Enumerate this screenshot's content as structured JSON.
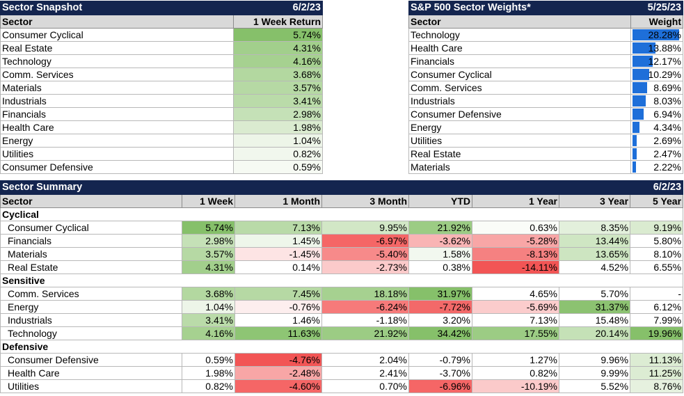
{
  "snapshot": {
    "title": "Sector Snapshot",
    "date": "6/2/23",
    "col_sector": "Sector",
    "col_return": "1 Week Return",
    "rows": [
      {
        "sector": "Consumer Cyclical",
        "ret": "5.74%",
        "color": "#86c06a"
      },
      {
        "sector": "Real Estate",
        "ret": "4.31%",
        "color": "#a2cf8c"
      },
      {
        "sector": "Technology",
        "ret": "4.16%",
        "color": "#a6d190"
      },
      {
        "sector": "Comm. Services",
        "ret": "3.68%",
        "color": "#b3d8a0"
      },
      {
        "sector": "Materials",
        "ret": "3.57%",
        "color": "#b6d9a4"
      },
      {
        "sector": "Industrials",
        "ret": "3.41%",
        "color": "#badba9"
      },
      {
        "sector": "Financials",
        "ret": "2.98%",
        "color": "#c5e1b7"
      },
      {
        "sector": "Health Care",
        "ret": "1.98%",
        "color": "#daebd0"
      },
      {
        "sector": "Energy",
        "ret": "1.04%",
        "color": "#edf5e8"
      },
      {
        "sector": "Utilities",
        "ret": "0.82%",
        "color": "#f1f7ed"
      },
      {
        "sector": "Consumer Defensive",
        "ret": "0.59%",
        "color": "#f6faf3"
      }
    ]
  },
  "weights": {
    "title": "S&P 500 Sector Weights*",
    "date": "5/25/23",
    "col_sector": "Sector",
    "col_weight": "Weight",
    "bar_color": "#1e6fd9",
    "rows": [
      {
        "sector": "Technology",
        "weight": "28.28%",
        "value": 28.28
      },
      {
        "sector": "Health Care",
        "weight": "13.88%",
        "value": 13.88
      },
      {
        "sector": "Financials",
        "weight": "12.17%",
        "value": 12.17
      },
      {
        "sector": "Consumer Cyclical",
        "weight": "10.29%",
        "value": 10.29
      },
      {
        "sector": "Comm. Services",
        "weight": "8.69%",
        "value": 8.69
      },
      {
        "sector": "Industrials",
        "weight": "8.03%",
        "value": 8.03
      },
      {
        "sector": "Consumer Defensive",
        "weight": "6.94%",
        "value": 6.94
      },
      {
        "sector": "Energy",
        "weight": "4.34%",
        "value": 4.34
      },
      {
        "sector": "Utilities",
        "weight": "2.69%",
        "value": 2.69
      },
      {
        "sector": "Real Estate",
        "weight": "2.47%",
        "value": 2.47
      },
      {
        "sector": "Materials",
        "weight": "2.22%",
        "value": 2.22
      }
    ]
  },
  "summary": {
    "title": "Sector Summary",
    "date": "6/2/23",
    "columns": [
      "Sector",
      "1 Week",
      "1 Month",
      "3 Month",
      "YTD",
      "1 Year",
      "3 Year",
      "5 Year"
    ],
    "groups": [
      {
        "name": "Cyclical",
        "rows": [
          {
            "sector": "Consumer Cyclical",
            "values": [
              "5.74%",
              "7.13%",
              "9.95%",
              "21.92%",
              "0.63%",
              "8.35%",
              "9.19%"
            ],
            "colors": [
              "#86c06a",
              "#b9daa8",
              "#d2e7c6",
              "#9ccc84",
              "#fafcf8",
              "#e3f0dc",
              "#daebd0"
            ]
          },
          {
            "sector": "Financials",
            "values": [
              "2.98%",
              "1.45%",
              "-6.97%",
              "-3.62%",
              "-5.28%",
              "13.44%",
              "5.80%"
            ],
            "colors": [
              "#c5e1b7",
              "#eef6ea",
              "#f56666",
              "#f9b4b4",
              "#f8a6a6",
              "#cfe6c3",
              "#ffffff"
            ]
          },
          {
            "sector": "Materials",
            "values": [
              "3.57%",
              "-1.45%",
              "-5.40%",
              "1.58%",
              "-8.13%",
              "13.65%",
              "8.10%"
            ],
            "colors": [
              "#b6d9a4",
              "#fde4e4",
              "#f78a8a",
              "#f2f8ef",
              "#f58181",
              "#cde5c1",
              "#ffffff"
            ]
          },
          {
            "sector": "Real Estate",
            "values": [
              "4.31%",
              "0.14%",
              "-2.73%",
              "0.38%",
              "-14.11%",
              "4.52%",
              "6.55%"
            ],
            "colors": [
              "#a2cf8c",
              "#ffffff",
              "#fbcaca",
              "#ffffff",
              "#f25555",
              "#ffffff",
              "#ffffff"
            ]
          }
        ]
      },
      {
        "name": "Sensitive",
        "rows": [
          {
            "sector": "Comm. Services",
            "values": [
              "3.68%",
              "7.45%",
              "18.18%",
              "31.97%",
              "4.65%",
              "5.70%",
              "-"
            ],
            "colors": [
              "#b3d8a0",
              "#b6d9a4",
              "#a6d190",
              "#86c06a",
              "#ffffff",
              "#ffffff",
              "#ffffff"
            ]
          },
          {
            "sector": "Energy",
            "values": [
              "1.04%",
              "-0.76%",
              "-6.24%",
              "-7.72%",
              "-5.69%",
              "31.37%",
              "6.12%"
            ],
            "colors": [
              "#edf5e8",
              "#fdeeee",
              "#f67a7a",
              "#f36969",
              "#fbcccc",
              "#8cc271",
              "#ffffff"
            ]
          },
          {
            "sector": "Industrials",
            "values": [
              "3.41%",
              "1.46%",
              "-1.18%",
              "3.20%",
              "7.13%",
              "15.48%",
              "7.99%"
            ],
            "colors": [
              "#badba9",
              "#ffffff",
              "#ffffff",
              "#ffffff",
              "#ffffff",
              "#ffffff",
              "#ffffff"
            ]
          },
          {
            "sector": "Technology",
            "values": [
              "4.16%",
              "11.63%",
              "21.92%",
              "34.42%",
              "17.55%",
              "20.14%",
              "19.96%"
            ],
            "colors": [
              "#a6d190",
              "#8ec574",
              "#9ccc84",
              "#86c06a",
              "#9ccc84",
              "#c5e1b7",
              "#86c06a"
            ]
          }
        ]
      },
      {
        "name": "Defensive",
        "rows": [
          {
            "sector": "Consumer Defensive",
            "values": [
              "0.59%",
              "-4.76%",
              "2.04%",
              "-0.79%",
              "1.27%",
              "9.96%",
              "11.13%"
            ],
            "colors": [
              "#ffffff",
              "#f25555",
              "#ffffff",
              "#ffffff",
              "#ffffff",
              "#ffffff",
              "#dcecd3"
            ]
          },
          {
            "sector": "Health Care",
            "values": [
              "1.98%",
              "-2.48%",
              "2.41%",
              "-3.70%",
              "0.82%",
              "9.99%",
              "11.25%"
            ],
            "colors": [
              "#ffffff",
              "#f8a6a6",
              "#ffffff",
              "#ffffff",
              "#ffffff",
              "#ffffff",
              "#dcecd3"
            ]
          },
          {
            "sector": "Utilities",
            "values": [
              "0.82%",
              "-4.60%",
              "0.70%",
              "-6.96%",
              "-10.19%",
              "5.52%",
              "8.76%"
            ],
            "colors": [
              "#ffffff",
              "#f56666",
              "#ffffff",
              "#f56666",
              "#fbcaca",
              "#ffffff",
              "#e6f1df"
            ]
          }
        ]
      }
    ]
  }
}
